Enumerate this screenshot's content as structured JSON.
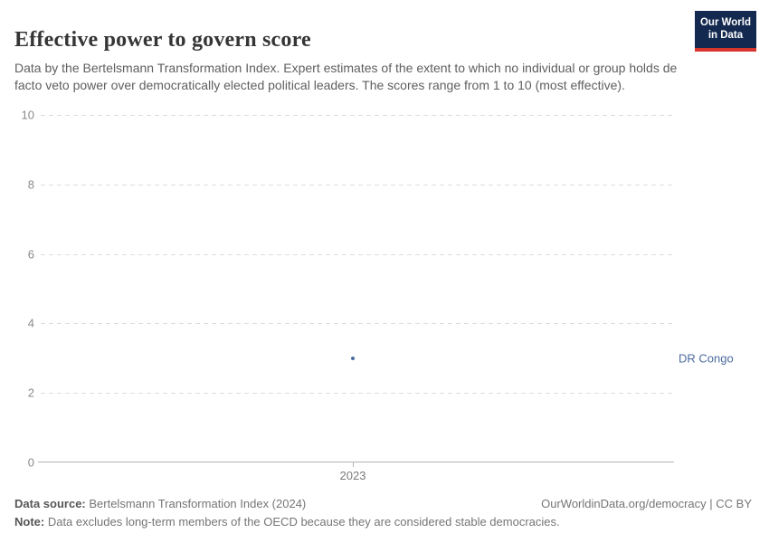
{
  "header": {
    "title": "Effective power to govern score",
    "subtitle": "Data by the Bertelsmann Transformation Index. Expert estimates of the extent to which no individual or group holds de facto veto power over democratically elected political leaders. The scores range from 1 to 10 (most effective).",
    "logo": {
      "line1": "Our World",
      "line2": "in Data",
      "bg_color": "#13294f",
      "accent_color": "#d8352f"
    }
  },
  "chart_data": {
    "type": "scatter",
    "title": "Effective power to govern score",
    "x": [
      2023
    ],
    "series": [
      {
        "name": "DR Congo",
        "values": [
          3
        ]
      }
    ],
    "xlabel": "",
    "ylabel": "",
    "ylim": [
      0,
      10
    ],
    "yticks": [
      0,
      2,
      4,
      6,
      8,
      10
    ],
    "xticks": [
      "2023"
    ],
    "grid": "horizontal-dashed",
    "legend_position": "label-right-of-plot",
    "point_color": "#4c6ba0",
    "label_color": "#4c6ba0",
    "grid_color": "#dcdcdc",
    "axis_color": "#b3b3b3"
  },
  "footer": {
    "data_source_label": "Data source:",
    "data_source_value": " Bertelsmann Transformation Index (2024)",
    "attribution": "OurWorldinData.org/democracy | CC BY",
    "note_label": "Note:",
    "note_value": " Data excludes long-term members of the OECD because they are considered stable democracies."
  }
}
